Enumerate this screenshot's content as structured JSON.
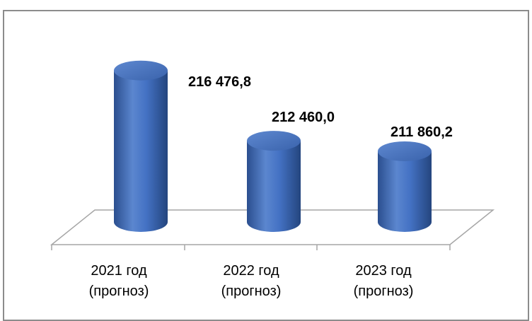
{
  "chart_data": {
    "type": "bar",
    "style": "3d-cylinder",
    "categories": [
      [
        "2021 год",
        "(прогноз)"
      ],
      [
        "2022 год",
        "(прогноз)"
      ],
      [
        "2023 год",
        "(прогноз)"
      ]
    ],
    "values": [
      216476.8,
      212460.0,
      211860.2
    ],
    "data_labels": [
      "216 476,8",
      "212 460,0",
      "211 860,2"
    ],
    "title": "",
    "xlabel": "",
    "ylabel": "",
    "ylim": [
      210000,
      218000
    ],
    "grid": false,
    "legend": "none",
    "colors": {
      "bar": "#4472c4",
      "bar_dark": "#2b4f8f",
      "bar_light": "#6e95d6",
      "floor": "#a6a6a6"
    }
  }
}
